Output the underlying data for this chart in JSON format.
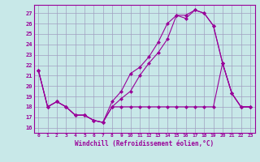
{
  "xlabel": "Windchill (Refroidissement éolien,°C)",
  "xlim": [
    -0.5,
    23.5
  ],
  "ylim": [
    15.5,
    27.8
  ],
  "yticks": [
    16,
    17,
    18,
    19,
    20,
    21,
    22,
    23,
    24,
    25,
    26,
    27
  ],
  "xticks": [
    0,
    1,
    2,
    3,
    4,
    5,
    6,
    7,
    8,
    9,
    10,
    11,
    12,
    13,
    14,
    15,
    16,
    17,
    18,
    19,
    20,
    21,
    22,
    23
  ],
  "background_color": "#c8e8e8",
  "grid_color": "#a0a0c0",
  "line_color": "#990099",
  "line1_x": [
    0,
    1,
    2,
    3,
    4,
    5,
    6,
    7,
    8,
    9,
    10,
    11,
    12,
    13,
    14,
    15,
    16,
    17,
    18,
    19,
    20,
    21,
    22,
    23
  ],
  "line1_y": [
    21.5,
    18.0,
    18.5,
    18.0,
    17.2,
    17.2,
    16.7,
    16.5,
    18.5,
    19.5,
    21.2,
    21.8,
    22.8,
    24.2,
    26.0,
    26.8,
    26.5,
    27.3,
    27.0,
    25.8,
    22.2,
    19.3,
    18.0,
    18.0
  ],
  "line2_x": [
    0,
    1,
    2,
    3,
    4,
    5,
    6,
    7,
    8,
    9,
    10,
    11,
    12,
    13,
    14,
    15,
    16,
    17,
    18,
    19,
    20,
    21,
    22,
    23
  ],
  "line2_y": [
    21.5,
    18.0,
    18.5,
    18.0,
    17.2,
    17.2,
    16.7,
    16.5,
    18.0,
    18.8,
    19.5,
    21.0,
    22.2,
    23.2,
    24.5,
    26.8,
    26.8,
    27.3,
    27.0,
    25.8,
    22.2,
    19.3,
    18.0,
    18.0
  ],
  "line3_x": [
    0,
    1,
    2,
    3,
    4,
    5,
    6,
    7,
    8,
    9,
    10,
    11,
    12,
    13,
    14,
    15,
    16,
    17,
    18,
    19,
    20,
    21,
    22,
    23
  ],
  "line3_y": [
    21.5,
    18.0,
    18.5,
    18.0,
    17.2,
    17.2,
    16.7,
    16.5,
    18.0,
    18.0,
    18.0,
    18.0,
    18.0,
    18.0,
    18.0,
    18.0,
    18.0,
    18.0,
    18.0,
    18.0,
    22.2,
    19.3,
    18.0,
    18.0
  ],
  "marker_size": 2.5,
  "line_width": 0.8
}
